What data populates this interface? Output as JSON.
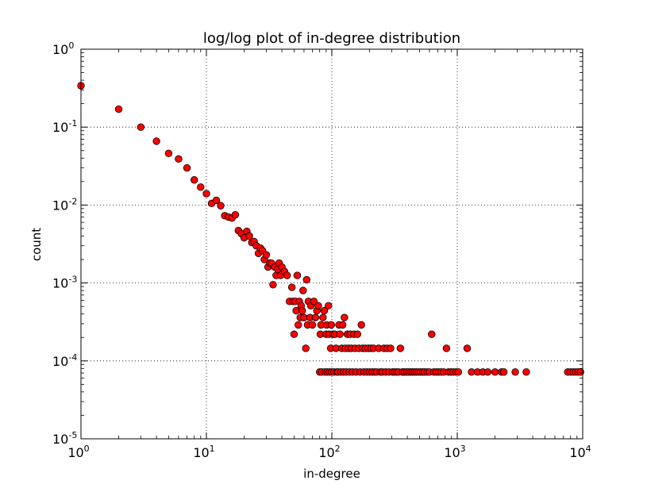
{
  "chart_data": {
    "type": "scatter",
    "title": "log/log plot of in-degree distribution",
    "xlabel": "in-degree",
    "ylabel": "count",
    "xscale": "log",
    "yscale": "log",
    "xlim": [
      1,
      10000
    ],
    "ylim": [
      1e-05,
      1
    ],
    "grid": true,
    "marker_color": "#ff0000",
    "marker_edge_color": "#000000",
    "x_ticks": [
      {
        "value": 1,
        "base": "10",
        "exp": "0"
      },
      {
        "value": 10,
        "base": "10",
        "exp": "1"
      },
      {
        "value": 100,
        "base": "10",
        "exp": "2"
      },
      {
        "value": 1000,
        "base": "10",
        "exp": "3"
      },
      {
        "value": 10000,
        "base": "10",
        "exp": "4"
      }
    ],
    "y_ticks": [
      {
        "value": 1e-05,
        "base": "10",
        "exp": "-5"
      },
      {
        "value": 0.0001,
        "base": "10",
        "exp": "-4"
      },
      {
        "value": 0.001,
        "base": "10",
        "exp": "-3"
      },
      {
        "value": 0.01,
        "base": "10",
        "exp": "-2"
      },
      {
        "value": 0.1,
        "base": "10",
        "exp": "-1"
      },
      {
        "value": 1,
        "base": "10",
        "exp": "0"
      }
    ],
    "points": [
      [
        1,
        0.34
      ],
      [
        2,
        0.17
      ],
      [
        3,
        0.1
      ],
      [
        4,
        0.066
      ],
      [
        5,
        0.046
      ],
      [
        6,
        0.039
      ],
      [
        7,
        0.03
      ],
      [
        8,
        0.021
      ],
      [
        9,
        0.017
      ],
      [
        10,
        0.014
      ],
      [
        11,
        0.0105
      ],
      [
        12,
        0.0115
      ],
      [
        13,
        0.0098
      ],
      [
        14,
        0.0073
      ],
      [
        15,
        0.007
      ],
      [
        16,
        0.0068
      ],
      [
        17,
        0.0075
      ],
      [
        18,
        0.0047
      ],
      [
        19,
        0.0043
      ],
      [
        20,
        0.0038
      ],
      [
        21,
        0.0046
      ],
      [
        22,
        0.004
      ],
      [
        23,
        0.0033
      ],
      [
        24,
        0.0034
      ],
      [
        25,
        0.003
      ],
      [
        26,
        0.0024
      ],
      [
        27,
        0.0028
      ],
      [
        28,
        0.0026
      ],
      [
        29,
        0.002
      ],
      [
        30,
        0.0023
      ],
      [
        31,
        0.0016
      ],
      [
        32,
        0.0018
      ],
      [
        33,
        0.0018
      ],
      [
        34,
        0.00095
      ],
      [
        35,
        0.0016
      ],
      [
        36,
        0.00125
      ],
      [
        37,
        0.0015
      ],
      [
        38,
        0.0018
      ],
      [
        39,
        0.00125
      ],
      [
        40,
        0.0016
      ],
      [
        42,
        0.0014
      ],
      [
        44,
        0.00125
      ],
      [
        46,
        0.00058
      ],
      [
        48,
        0.00088
      ],
      [
        49,
        0.00058
      ],
      [
        50,
        0.00022
      ],
      [
        51,
        0.00058
      ],
      [
        52,
        0.00044
      ],
      [
        53,
        0.00125
      ],
      [
        54,
        0.00029
      ],
      [
        55,
        0.00058
      ],
      [
        56,
        0.00036
      ],
      [
        57,
        0.00051
      ],
      [
        58,
        0.00044
      ],
      [
        59,
        0.0008
      ],
      [
        60,
        0.00036
      ],
      [
        62,
        0.000145
      ],
      [
        63,
        0.0011
      ],
      [
        64,
        0.00029
      ],
      [
        65,
        0.00058
      ],
      [
        67,
        0.00036
      ],
      [
        68,
        0.00051
      ],
      [
        70,
        0.00029
      ],
      [
        72,
        0.00058
      ],
      [
        74,
        0.00036
      ],
      [
        76,
        0.00044
      ],
      [
        78,
        0.00051
      ],
      [
        80,
        7.2e-05
      ],
      [
        81,
        0.00022
      ],
      [
        82,
        0.00029
      ],
      [
        83,
        7.2e-05
      ],
      [
        85,
        0.00036
      ],
      [
        87,
        0.00044
      ],
      [
        88,
        7.2e-05
      ],
      [
        90,
        0.00022
      ],
      [
        91,
        0.00029
      ],
      [
        92,
        7.2e-05
      ],
      [
        94,
        0.00051
      ],
      [
        95,
        0.00022
      ],
      [
        96,
        7.2e-05
      ],
      [
        98,
        0.000145
      ],
      [
        99,
        0.00029
      ],
      [
        100,
        7.2e-05
      ],
      [
        102,
        0.00022
      ],
      [
        104,
        7.2e-05
      ],
      [
        106,
        0.00022
      ],
      [
        108,
        0.000145
      ],
      [
        110,
        7.2e-05
      ],
      [
        112,
        7.2e-05
      ],
      [
        114,
        0.00029
      ],
      [
        116,
        0.00022
      ],
      [
        118,
        7.2e-05
      ],
      [
        120,
        0.000145
      ],
      [
        122,
        0.00029
      ],
      [
        124,
        7.2e-05
      ],
      [
        126,
        0.00036
      ],
      [
        128,
        0.000145
      ],
      [
        130,
        7.2e-05
      ],
      [
        133,
        0.00022
      ],
      [
        136,
        0.000145
      ],
      [
        138,
        7.2e-05
      ],
      [
        140,
        0.00022
      ],
      [
        143,
        0.000145
      ],
      [
        146,
        7.2e-05
      ],
      [
        150,
        0.00022
      ],
      [
        153,
        0.000145
      ],
      [
        156,
        7.2e-05
      ],
      [
        160,
        0.00022
      ],
      [
        164,
        0.000145
      ],
      [
        168,
        7.2e-05
      ],
      [
        172,
        0.00029
      ],
      [
        176,
        0.000145
      ],
      [
        180,
        7.2e-05
      ],
      [
        185,
        0.000145
      ],
      [
        190,
        7.2e-05
      ],
      [
        195,
        0.000145
      ],
      [
        200,
        7.2e-05
      ],
      [
        205,
        0.000145
      ],
      [
        210,
        7.2e-05
      ],
      [
        215,
        0.000145
      ],
      [
        220,
        7.2e-05
      ],
      [
        228,
        7.2e-05
      ],
      [
        236,
        0.000145
      ],
      [
        244,
        7.2e-05
      ],
      [
        252,
        7.2e-05
      ],
      [
        260,
        0.000145
      ],
      [
        268,
        7.2e-05
      ],
      [
        276,
        0.000145
      ],
      [
        285,
        7.2e-05
      ],
      [
        294,
        0.000145
      ],
      [
        305,
        7.2e-05
      ],
      [
        316,
        7.2e-05
      ],
      [
        328,
        7.2e-05
      ],
      [
        340,
        7.2e-05
      ],
      [
        352,
        0.000145
      ],
      [
        365,
        7.2e-05
      ],
      [
        380,
        7.2e-05
      ],
      [
        395,
        7.2e-05
      ],
      [
        410,
        7.2e-05
      ],
      [
        425,
        7.2e-05
      ],
      [
        440,
        7.2e-05
      ],
      [
        455,
        7.2e-05
      ],
      [
        470,
        7.2e-05
      ],
      [
        490,
        7.2e-05
      ],
      [
        510,
        7.2e-05
      ],
      [
        530,
        7.2e-05
      ],
      [
        550,
        7.2e-05
      ],
      [
        575,
        7.2e-05
      ],
      [
        600,
        7.2e-05
      ],
      [
        625,
        0.00022
      ],
      [
        650,
        7.2e-05
      ],
      [
        680,
        7.2e-05
      ],
      [
        710,
        7.2e-05
      ],
      [
        745,
        7.2e-05
      ],
      [
        780,
        7.2e-05
      ],
      [
        820,
        0.000145
      ],
      [
        850,
        7.2e-05
      ],
      [
        890,
        7.2e-05
      ],
      [
        930,
        7.2e-05
      ],
      [
        980,
        7.2e-05
      ],
      [
        1020,
        7.2e-05
      ],
      [
        1200,
        0.000145
      ],
      [
        1300,
        7.2e-05
      ],
      [
        1450,
        7.2e-05
      ],
      [
        1600,
        7.2e-05
      ],
      [
        1750,
        7.2e-05
      ],
      [
        2000,
        7.2e-05
      ],
      [
        2250,
        7.2e-05
      ],
      [
        2350,
        7.2e-05
      ],
      [
        2900,
        7.2e-05
      ],
      [
        3550,
        7.2e-05
      ],
      [
        7600,
        7.2e-05
      ],
      [
        8000,
        7.2e-05
      ],
      [
        8400,
        7.2e-05
      ],
      [
        8800,
        7.2e-05
      ],
      [
        9200,
        7.2e-05
      ],
      [
        9600,
        7.2e-05
      ]
    ]
  }
}
